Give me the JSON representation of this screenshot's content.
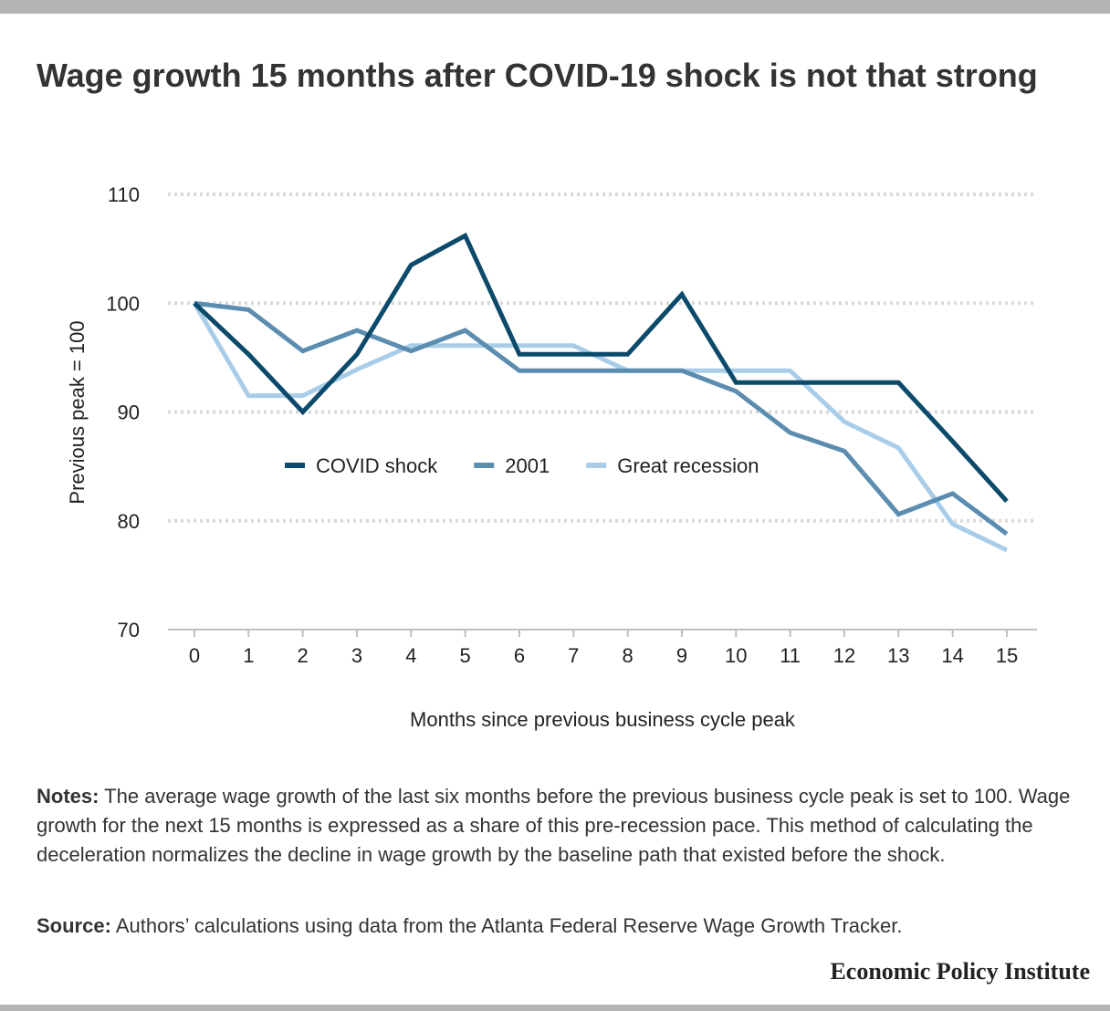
{
  "title": "Wage growth 15 months after COVID-19 shock is not that strong",
  "notes_label": "Notes:",
  "notes_text": "The average wage growth of the last six months before the previous business cycle peak is set to 100. Wage growth for the next 15 months is expressed as a share of this pre-recession pace. This method of calculating the deceleration normalizes the decline in wage growth by the baseline path that existed before the shock.",
  "source_label": "Source:",
  "source_text": "Authors’ calculations using data from the Atlanta Federal Reserve Wage Growth Tracker.",
  "org": "Economic Policy Institute",
  "chart_data": {
    "type": "line",
    "x": [
      0,
      1,
      2,
      3,
      4,
      5,
      6,
      7,
      8,
      9,
      10,
      11,
      12,
      13,
      14,
      15
    ],
    "xlabel": "Months since previous business cycle peak",
    "ylabel": "Previous peak = 100",
    "ylim": [
      70,
      110
    ],
    "yticks": [
      70,
      80,
      90,
      100,
      110
    ],
    "grid": true,
    "legend_placement": "center",
    "series": [
      {
        "name": "COVID shock",
        "color": "#0b4a6b",
        "values": [
          100,
          95.3,
          90,
          95.3,
          103.5,
          106.2,
          95.3,
          95.3,
          95.3,
          100.8,
          92.7,
          92.7,
          92.7,
          92.7,
          87.3,
          81.8
        ]
      },
      {
        "name": "2001",
        "color": "#5b8db0",
        "values": [
          100,
          99.4,
          95.6,
          97.5,
          95.6,
          97.5,
          93.8,
          93.8,
          93.8,
          93.8,
          91.9,
          88.1,
          86.4,
          80.6,
          82.5,
          78.8
        ]
      },
      {
        "name": "Great recession",
        "color": "#a9cde9",
        "values": [
          100,
          91.5,
          91.5,
          93.9,
          96.1,
          96.1,
          96.1,
          96.1,
          93.8,
          93.8,
          93.8,
          93.8,
          89.1,
          86.7,
          79.7,
          77.3
        ]
      }
    ]
  }
}
